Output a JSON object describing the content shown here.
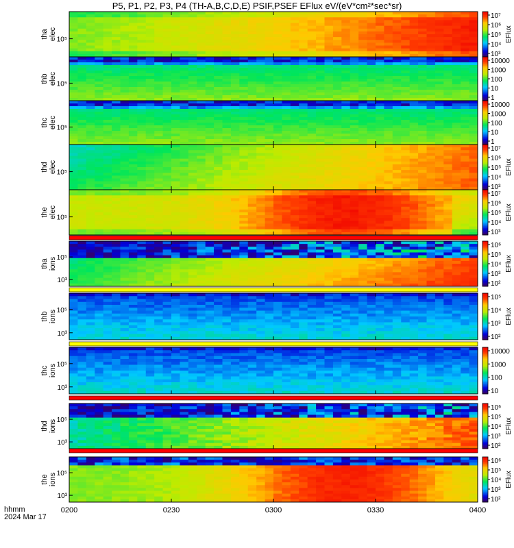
{
  "title": "P5, P1, P2, P3, P4 (TH-A,B,C,D,E) PSIF,PSEF EFlux eV/(eV*cm²*sec*sr)",
  "time_axis": {
    "label_line1": "hhmm",
    "label_line2": "2024 Mar 17",
    "ticks": [
      "0200",
      "0230",
      "0300",
      "0330",
      "0400"
    ]
  },
  "chart_data": [
    {
      "type": "heatmap",
      "ylabel": [
        "tha",
        "elec"
      ],
      "y_ticks": [
        "10⁵"
      ],
      "colorbar_label": "EFlux",
      "colorbar_ticks": [
        "10⁷",
        "10⁶",
        "10⁵",
        "10⁴",
        "10³"
      ],
      "overall_trend": "flux increasing toward end of interval"
    },
    {
      "type": "heatmap",
      "ylabel": [
        "thb",
        "elec"
      ],
      "y_ticks": [
        "10⁵"
      ],
      "colorbar_label": "",
      "colorbar_ticks": [
        "10000",
        "1000",
        "100",
        "10",
        "1"
      ],
      "overall_trend": "roughly constant, banded green"
    },
    {
      "type": "heatmap",
      "ylabel": [
        "thc",
        "elec"
      ],
      "y_ticks": [
        "10⁵"
      ],
      "colorbar_label": "",
      "colorbar_ticks": [
        "10000",
        "1000",
        "100",
        "10",
        "1"
      ],
      "overall_trend": "roughly constant, banded green"
    },
    {
      "type": "heatmap",
      "ylabel": [
        "thd",
        "elec"
      ],
      "y_ticks": [
        "10⁵"
      ],
      "colorbar_label": "EFlux",
      "colorbar_ticks": [
        "10⁷",
        "10⁶",
        "10⁵",
        "10⁴",
        "10³"
      ],
      "overall_trend": "flux increasing toward end of interval"
    },
    {
      "type": "heatmap",
      "ylabel": [
        "the",
        "elec"
      ],
      "y_ticks": [
        "10⁵"
      ],
      "colorbar_label": "EFlux",
      "colorbar_ticks": [
        "10⁷",
        "10⁶",
        "10⁵",
        "10⁴",
        "10³"
      ],
      "overall_trend": "peak flux near 0300-0345"
    },
    {
      "type": "heatmap",
      "ylabel": [
        "tha",
        "ions"
      ],
      "y_ticks": [
        "10⁵",
        "10³"
      ],
      "colorbar_label": "EFlux",
      "colorbar_ticks": [
        "10⁶",
        "10⁵",
        "10⁴",
        "10³",
        "10²"
      ],
      "overall_trend": "flux increasing toward end of interval"
    },
    {
      "type": "heatmap",
      "ylabel": [
        "thb",
        "ions"
      ],
      "y_ticks": [
        "10⁵",
        "10³"
      ],
      "colorbar_label": "EFlux",
      "colorbar_ticks": [
        "10⁵",
        "10⁴",
        "10³",
        "10²"
      ],
      "overall_trend": "low flux, blue"
    },
    {
      "type": "heatmap",
      "ylabel": [
        "thc",
        "ions"
      ],
      "y_ticks": [
        "10⁵",
        "10³"
      ],
      "colorbar_label": "",
      "colorbar_ticks": [
        "10000",
        "1000",
        "100",
        "10"
      ],
      "overall_trend": "low flux, blue"
    },
    {
      "type": "heatmap",
      "ylabel": [
        "thd",
        "ions"
      ],
      "y_ticks": [
        "10⁵",
        "10³"
      ],
      "colorbar_label": "EFlux",
      "colorbar_ticks": [
        "10⁶",
        "10⁵",
        "10⁴",
        "10³",
        "10²"
      ],
      "overall_trend": "flux increasing toward end of interval"
    },
    {
      "type": "heatmap",
      "ylabel": [
        "the",
        "ions"
      ],
      "y_ticks": [
        "10⁵",
        "10³"
      ],
      "colorbar_label": "EFlux",
      "colorbar_ticks": [
        "10⁶",
        "10⁵",
        "10⁴",
        "10³",
        "10²"
      ],
      "overall_trend": "peak flux near 0300-0345"
    }
  ]
}
